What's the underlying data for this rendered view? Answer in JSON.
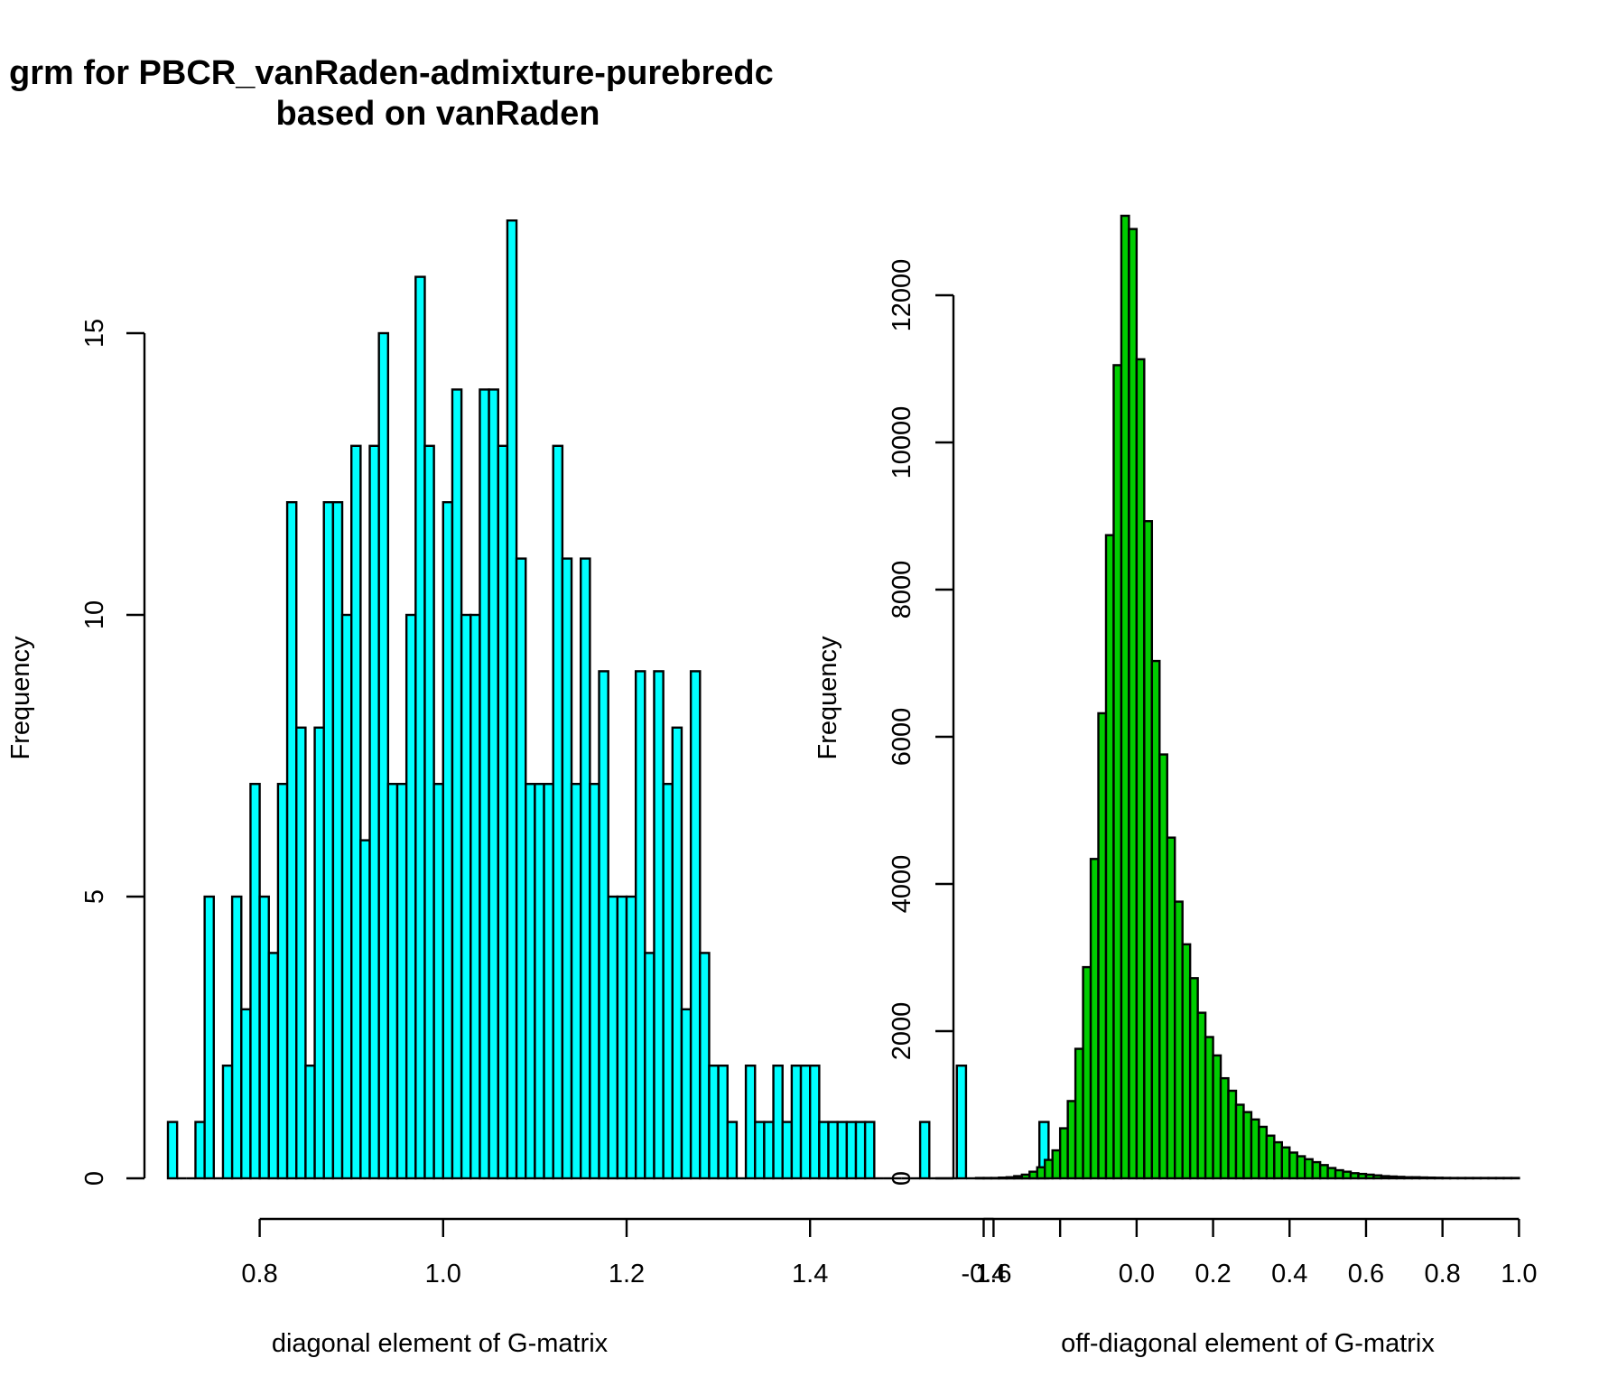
{
  "title_lines": [
    "grm for PBCR_vanRaden-admixture-purebredc",
    "based on vanRaden"
  ],
  "chart_data": [
    {
      "type": "bar",
      "title": "grm for PBCR_vanRaden-admixture-purebredc based on vanRaden",
      "xlabel": "diagonal element of G-matrix",
      "ylabel": "Frequency",
      "color": "#00ffff",
      "border_color": "#000000",
      "bin_width": 0.01,
      "x_start": 0.7,
      "xlim": [
        0.7,
        1.65
      ],
      "ylim": [
        0,
        17
      ],
      "x_ticks": [
        0.8,
        1.0,
        1.2,
        1.4,
        1.6
      ],
      "x_tick_labels": [
        "0.8",
        "1.0",
        "1.2",
        "1.4",
        "1.6"
      ],
      "y_ticks": [
        0,
        5,
        10,
        15
      ],
      "y_tick_labels": [
        "0",
        "5",
        "10",
        "15"
      ],
      "counts": [
        1,
        0,
        0,
        1,
        5,
        0,
        2,
        5,
        3,
        7,
        5,
        4,
        7,
        12,
        8,
        2,
        8,
        12,
        12,
        10,
        13,
        6,
        13,
        15,
        7,
        7,
        10,
        16,
        13,
        7,
        12,
        14,
        10,
        10,
        14,
        14,
        13,
        17,
        11,
        7,
        7,
        7,
        13,
        11,
        7,
        11,
        7,
        9,
        5,
        5,
        5,
        9,
        4,
        9,
        7,
        8,
        3,
        9,
        4,
        2,
        2,
        1,
        0,
        2,
        1,
        1,
        2,
        1,
        2,
        2,
        2,
        1,
        1,
        1,
        1,
        1,
        1,
        0,
        0,
        0,
        0,
        0,
        1,
        0,
        0,
        0,
        2,
        0,
        0,
        0,
        0,
        0,
        0,
        0,
        0,
        1
      ],
      "grid": false
    },
    {
      "type": "bar",
      "xlabel": "off-diagonal element of G-matrix",
      "ylabel": "Frequency",
      "color": "#00cd00",
      "border_color": "#000000",
      "bin_width": 0.02,
      "x_start": -0.42,
      "xlim": [
        -0.42,
        1.0
      ],
      "ylim": [
        0,
        13000
      ],
      "x_ticks": [
        -0.4,
        0.0,
        0.2,
        0.4,
        0.6,
        0.8,
        1.0
      ],
      "x_tick_labels": [
        "-0.4",
        "0.0",
        "0.2",
        "0.4",
        "0.6",
        "0.8",
        "1.0"
      ],
      "x_axis_ticks": [
        -0.4,
        -0.2,
        0.0,
        0.2,
        0.4,
        0.6,
        0.8,
        1.0
      ],
      "y_ticks": [
        0,
        2000,
        4000,
        6000,
        8000,
        10000,
        12000
      ],
      "y_tick_labels": [
        "0",
        "2000",
        "4000",
        "6000",
        "8000",
        "10000",
        "12000"
      ],
      "counts": [
        5,
        5,
        5,
        10,
        15,
        30,
        50,
        90,
        150,
        250,
        380,
        680,
        1050,
        1760,
        2870,
        4340,
        6320,
        8740,
        11050,
        13080,
        12900,
        11130,
        8930,
        7030,
        5760,
        4630,
        3760,
        3180,
        2720,
        2250,
        1920,
        1670,
        1360,
        1190,
        1000,
        900,
        800,
        700,
        580,
        490,
        420,
        350,
        300,
        260,
        220,
        180,
        140,
        110,
        90,
        70,
        60,
        50,
        40,
        30,
        25,
        20,
        15,
        15,
        12,
        10,
        8,
        6,
        5,
        5,
        5,
        5,
        5,
        5,
        5,
        5,
        5
      ],
      "grid": false
    }
  ]
}
